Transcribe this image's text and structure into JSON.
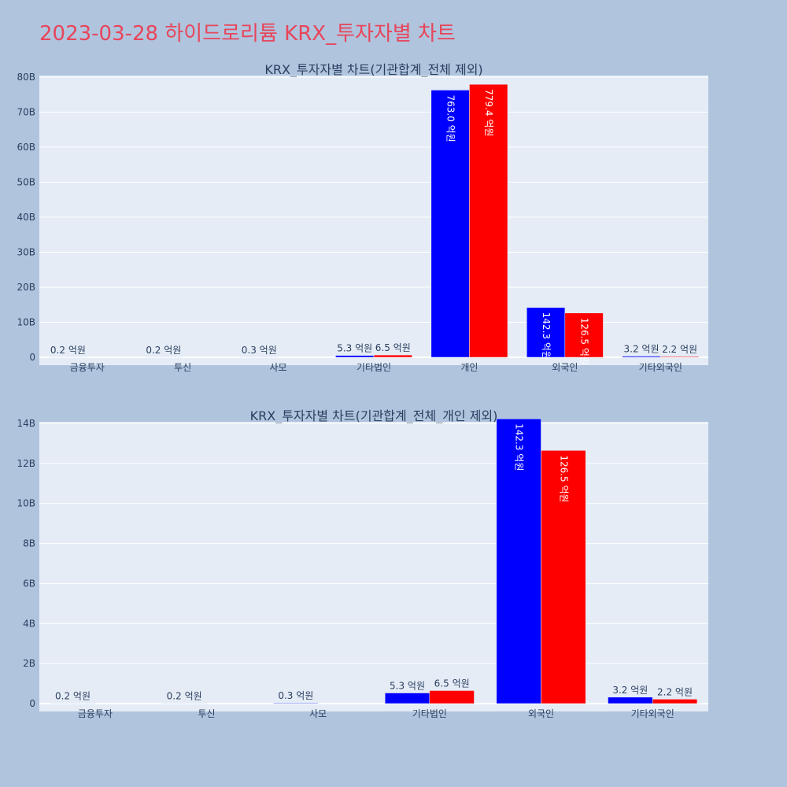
{
  "page": {
    "title": "2023-03-28 하이드로리튬 KRX_투자자별 차트"
  },
  "chart_data": [
    {
      "type": "bar",
      "title": "KRX_투자자별 차트(기관합계_전체 제외)",
      "categories": [
        "금융투자",
        "투신",
        "사모",
        "기타법인",
        "개인",
        "외국인",
        "기타외국인"
      ],
      "series": [
        {
          "color": "#0000ff",
          "values": [
            20000000,
            20000000,
            30000000,
            530000000,
            76300000000,
            14230000000,
            320000000
          ],
          "labels": [
            "0.2 억원",
            "0.2 억원",
            "0.3 억원",
            "5.3 억원",
            "763.0 억원",
            "142.3 억원",
            "3.2 억원"
          ]
        },
        {
          "color": "#ff0000",
          "values": [
            0,
            0,
            0,
            650000000,
            77940000000,
            12650000000,
            220000000
          ],
          "labels": [
            "",
            "",
            "",
            "6.5 억원",
            "779.4 억원",
            "126.5 억원",
            "2.2 억원"
          ]
        }
      ],
      "ylim": [
        0,
        80000000000
      ],
      "yticks": [
        0,
        10000000000,
        20000000000,
        30000000000,
        40000000000,
        50000000000,
        60000000000,
        70000000000,
        80000000000
      ],
      "yticklabels": [
        "0",
        "10B",
        "20B",
        "30B",
        "40B",
        "50B",
        "60B",
        "70B",
        "80B"
      ],
      "grid": true
    },
    {
      "type": "bar",
      "title": "KRX_투자자별 차트(기관합계_전체_개인 제외)",
      "categories": [
        "금융투자",
        "투신",
        "사모",
        "기타법인",
        "외국인",
        "기타외국인"
      ],
      "series": [
        {
          "color": "#0000ff",
          "values": [
            20000000,
            20000000,
            30000000,
            530000000,
            14230000000,
            320000000
          ],
          "labels": [
            "0.2 억원",
            "0.2 억원",
            "0.3 억원",
            "5.3 억원",
            "142.3 억원",
            "3.2 억원"
          ]
        },
        {
          "color": "#ff0000",
          "values": [
            0,
            0,
            0,
            650000000,
            12650000000,
            220000000
          ],
          "labels": [
            "",
            "",
            "",
            "6.5 억원",
            "126.5 억원",
            "2.2 억원"
          ]
        }
      ],
      "ylim": [
        0,
        14000000000
      ],
      "yticks": [
        0,
        2000000000,
        4000000000,
        6000000000,
        8000000000,
        10000000000,
        12000000000,
        14000000000
      ],
      "yticklabels": [
        "0",
        "2B",
        "4B",
        "6B",
        "8B",
        "10B",
        "12B",
        "14B"
      ],
      "grid": true
    }
  ]
}
